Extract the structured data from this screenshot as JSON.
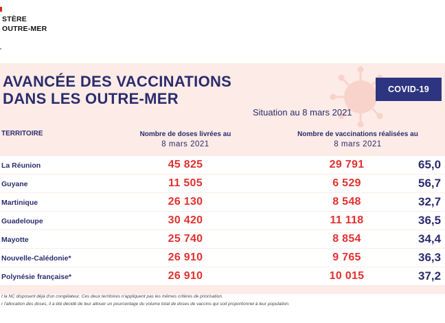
{
  "ministry": {
    "line1": "STÈRE",
    "line2": "OUTRE-MER"
  },
  "title": {
    "line1": "AVANCÉE DES VACCINATIONS",
    "line2": "DANS LES OUTRE-MER"
  },
  "badge": "COVID-19",
  "situation": "Situation au 8 mars 2021",
  "headers": {
    "territory": "TERRITOIRE",
    "doses_line1": "Nombre de doses livrées au",
    "doses_line2": "8 mars 2021",
    "vacc_line1": "Nombre de vaccinations réalisées au",
    "vacc_line2": "8 mars 2021"
  },
  "rows": [
    {
      "territory": "La Réunion",
      "doses": "45 825",
      "vaccinations": "29 791",
      "percent": "65,0"
    },
    {
      "territory": "Guyane",
      "doses": "11 505",
      "vaccinations": "6 529",
      "percent": "56,7"
    },
    {
      "territory": "Martinique",
      "doses": "26 130",
      "vaccinations": "8 548",
      "percent": "32,7"
    },
    {
      "territory": "Guadeloupe",
      "doses": "30 420",
      "vaccinations": "11 118",
      "percent": "36,5"
    },
    {
      "territory": "Mayotte",
      "doses": "25 740",
      "vaccinations": "8 854",
      "percent": "34,4"
    },
    {
      "territory": "Nouvelle-Calédonie*",
      "doses": "26 910",
      "vaccinations": "9 765",
      "percent": "36,3"
    },
    {
      "territory": "Polynésie française*",
      "doses": "26 910",
      "vaccinations": "10 015",
      "percent": "37,2"
    }
  ],
  "notes": {
    "line1": "t la NC disposent déjà d'un congélateur. Ces deux territoires n'appliquent pas les mêmes critères de priorisation.",
    "line2": "r l'allocation des doses, il a été décidé de leur allouer un pourcentage du volume total de doses de vaccins qui soit proportionnel à leur population."
  },
  "colors": {
    "navy": "#2b2c6e",
    "red": "#e2302e",
    "panel": "#fcebe6",
    "badge": "#2d3580"
  }
}
